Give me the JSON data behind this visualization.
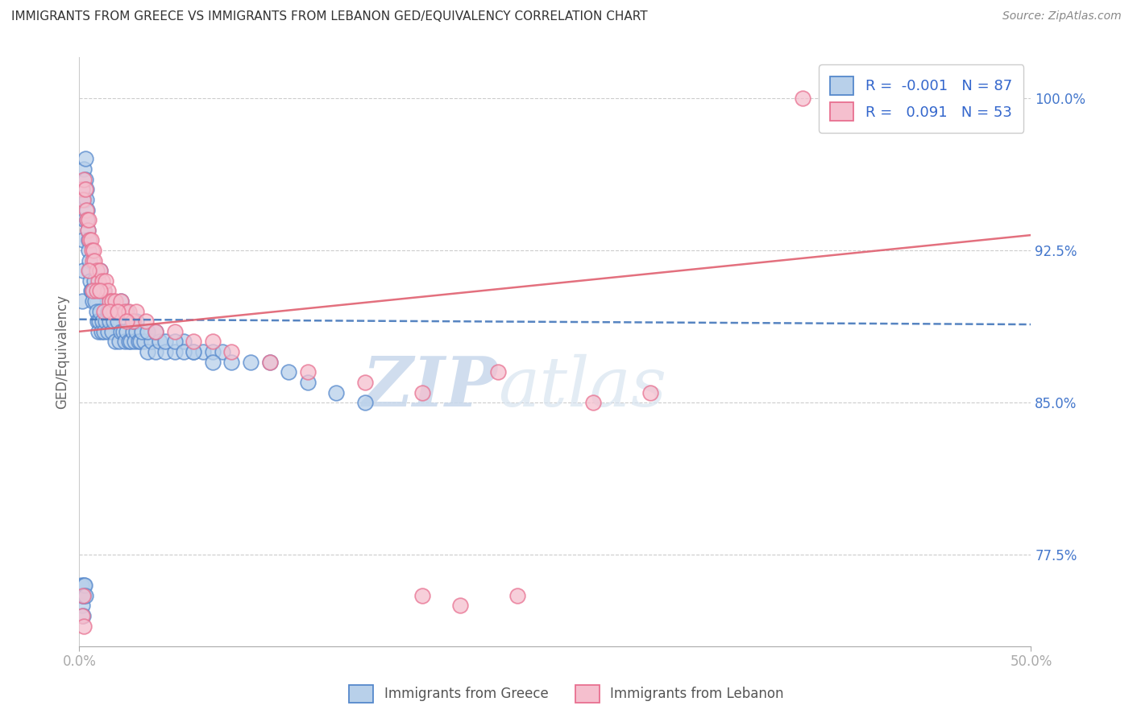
{
  "title": "IMMIGRANTS FROM GREECE VS IMMIGRANTS FROM LEBANON GED/EQUIVALENCY CORRELATION CHART",
  "source": "Source: ZipAtlas.com",
  "ylabel": "GED/Equivalency",
  "xlim": [
    0.0,
    50.0
  ],
  "ylim": [
    73.0,
    102.0
  ],
  "yticks": [
    77.5,
    85.0,
    92.5,
    100.0
  ],
  "ytick_labels": [
    "77.5%",
    "85.0%",
    "92.5%",
    "100.0%"
  ],
  "legend_r_greece": "-0.001",
  "legend_n_greece": "87",
  "legend_r_lebanon": "0.091",
  "legend_n_lebanon": "53",
  "color_greece_face": "#b8d0ea",
  "color_greece_edge": "#5588cc",
  "color_lebanon_face": "#f5bfce",
  "color_lebanon_edge": "#e87090",
  "color_trend_greece": "#4477bb",
  "color_trend_lebanon": "#e06070",
  "tick_color": "#4477cc",
  "ylabel_color": "#666666",
  "grid_color": "#cccccc",
  "title_color": "#333333",
  "source_color": "#888888",
  "watermark_color": "#dde8f5",
  "greece_x": [
    0.15,
    0.18,
    0.2,
    0.22,
    0.25,
    0.28,
    0.3,
    0.32,
    0.35,
    0.38,
    0.4,
    0.42,
    0.45,
    0.48,
    0.5,
    0.52,
    0.55,
    0.58,
    0.6,
    0.65,
    0.7,
    0.75,
    0.8,
    0.85,
    0.9,
    0.95,
    1.0,
    1.05,
    1.1,
    1.15,
    1.2,
    1.3,
    1.4,
    1.5,
    1.6,
    1.7,
    1.8,
    1.9,
    2.0,
    2.1,
    2.2,
    2.3,
    2.4,
    2.5,
    2.6,
    2.7,
    2.8,
    2.9,
    3.0,
    3.1,
    3.2,
    3.4,
    3.6,
    3.8,
    4.0,
    4.2,
    4.5,
    5.0,
    5.5,
    6.0,
    6.5,
    7.0,
    7.5,
    8.0,
    9.0,
    10.0,
    11.0,
    12.0,
    13.5,
    15.0,
    1.1,
    1.3,
    1.5,
    1.7,
    2.0,
    2.2,
    2.5,
    2.8,
    3.0,
    3.3,
    3.6,
    4.0,
    4.5,
    5.0,
    5.5,
    6.0,
    7.0
  ],
  "greece_y": [
    90.0,
    93.0,
    91.5,
    95.0,
    96.5,
    94.0,
    97.0,
    96.0,
    95.5,
    95.0,
    94.5,
    94.0,
    93.5,
    93.0,
    92.5,
    92.0,
    91.5,
    91.0,
    90.5,
    90.5,
    90.0,
    90.5,
    91.0,
    90.0,
    89.5,
    89.0,
    88.5,
    89.0,
    89.5,
    88.5,
    89.0,
    88.5,
    89.0,
    88.5,
    89.0,
    88.5,
    89.0,
    88.0,
    89.0,
    88.0,
    88.5,
    88.5,
    88.0,
    88.5,
    88.0,
    88.0,
    88.5,
    88.0,
    88.5,
    88.0,
    88.0,
    88.0,
    87.5,
    88.0,
    87.5,
    88.0,
    87.5,
    87.5,
    88.0,
    87.5,
    87.5,
    87.5,
    87.5,
    87.0,
    87.0,
    87.0,
    86.5,
    86.0,
    85.5,
    85.0,
    91.5,
    90.5,
    89.5,
    90.0,
    89.5,
    90.0,
    89.5,
    89.0,
    89.0,
    88.5,
    88.5,
    88.5,
    88.0,
    88.0,
    87.5,
    87.5,
    87.0
  ],
  "lebanon_x": [
    0.15,
    0.2,
    0.25,
    0.3,
    0.35,
    0.4,
    0.45,
    0.5,
    0.55,
    0.6,
    0.65,
    0.7,
    0.75,
    0.8,
    0.9,
    1.0,
    1.1,
    1.2,
    1.3,
    1.4,
    1.5,
    1.6,
    1.7,
    1.8,
    1.9,
    2.0,
    2.2,
    2.4,
    2.6,
    2.8,
    3.0,
    3.5,
    4.0,
    5.0,
    6.0,
    7.0,
    8.0,
    10.0,
    12.0,
    15.0,
    18.0,
    22.0,
    27.0,
    30.0,
    38.0,
    0.5,
    0.7,
    0.9,
    1.1,
    1.3,
    1.6,
    2.0,
    2.5
  ],
  "lebanon_y": [
    95.5,
    95.0,
    96.0,
    95.5,
    94.5,
    94.0,
    93.5,
    94.0,
    93.0,
    93.0,
    92.5,
    92.0,
    92.5,
    92.0,
    91.5,
    91.0,
    91.5,
    91.0,
    90.5,
    91.0,
    90.5,
    90.0,
    90.0,
    89.5,
    90.0,
    89.5,
    90.0,
    89.5,
    89.5,
    89.0,
    89.5,
    89.0,
    88.5,
    88.5,
    88.0,
    88.0,
    87.5,
    87.0,
    86.5,
    86.0,
    85.5,
    86.5,
    85.0,
    85.5,
    100.0,
    91.5,
    90.5,
    90.5,
    90.5,
    89.5,
    89.5,
    89.5,
    89.0
  ],
  "greece_x_low": [
    0.1,
    0.12,
    0.15,
    0.18,
    0.2,
    0.22,
    0.25,
    0.28,
    0.3
  ],
  "greece_y_low": [
    76.0,
    75.5,
    75.0,
    74.5,
    75.5,
    76.0,
    75.5,
    76.0,
    75.5
  ],
  "lebanon_x_low": [
    0.15,
    0.2,
    0.25,
    18.0,
    20.0,
    23.0
  ],
  "lebanon_y_low": [
    74.5,
    75.5,
    74.0,
    75.5,
    75.0,
    75.5
  ]
}
